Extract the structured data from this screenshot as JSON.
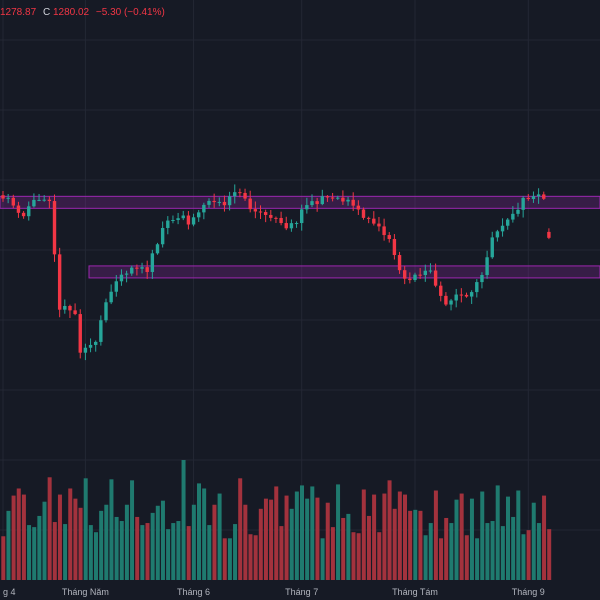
{
  "legend": {
    "low_value": "1278.87",
    "close_label": "C",
    "close_value": "1280.02",
    "change": "−5.30 (−0.41%)"
  },
  "colors": {
    "up": "#26a69a",
    "down": "#f23645",
    "volume_up": "#1f7a6f",
    "volume_down": "#a3323d",
    "zone_fill": "rgba(156, 39, 176, 0.25)",
    "zone_stroke": "#9c27b0",
    "background": "#161a25"
  },
  "chart_data": {
    "type": "candlestick",
    "x_axis": {
      "ticks": [
        {
          "index": 0,
          "label": "g 4"
        },
        {
          "index": 16,
          "label": "Tháng Năm"
        },
        {
          "index": 37,
          "label": "Tháng 6"
        },
        {
          "index": 58,
          "label": "Tháng 7"
        },
        {
          "index": 80,
          "label": "Tháng Tám"
        },
        {
          "index": 102,
          "label": "Tháng 9"
        }
      ]
    },
    "y_range": [
      1140,
      1385
    ],
    "zones": [
      {
        "from": 1311,
        "to": 1317
      },
      {
        "from": 1250,
        "to": 1255
      }
    ],
    "ohlc": [],
    "volume": []
  }
}
